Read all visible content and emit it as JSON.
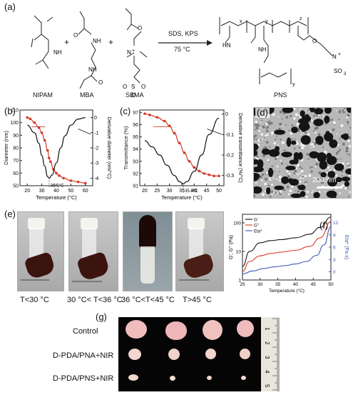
{
  "panel_a": {
    "label": "(a)",
    "monomers": [
      "NIPAM",
      "MBA",
      "SBMA"
    ],
    "product": "PNS",
    "conditions_top": "SDS, KPS",
    "conditions_bottom": "75 °C",
    "plus": "+"
  },
  "panel_b": {
    "label": "(b)",
    "chart_data": {
      "type": "line",
      "xlabel": "Temperature (°C)",
      "ylabel": "Diameter (nm)",
      "y2label": "Derivative diameter (nm/°C)",
      "xlim": [
        15,
        65
      ],
      "xticks": [
        20,
        30,
        40,
        50,
        60
      ],
      "ylim": [
        50,
        110
      ],
      "yticks": [
        50,
        60,
        70,
        80,
        90,
        100,
        110
      ],
      "y2lim": [
        -4.5,
        0.5
      ],
      "y2ticks": [
        0,
        -1,
        -2,
        -3,
        -4
      ],
      "annotation": "35.1°C",
      "series": [
        {
          "x": [
            20,
            22,
            25,
            28,
            30,
            32,
            34,
            35,
            36,
            38,
            40,
            42,
            45,
            50,
            55,
            60
          ],
          "values": [
            104,
            103,
            100,
            96,
            92,
            86,
            78,
            72,
            69,
            63,
            60,
            58,
            56,
            54,
            53,
            52
          ]
        },
        {
          "x": [
            20,
            25,
            28,
            30,
            32,
            34,
            35.1,
            37,
            40,
            43,
            46,
            50,
            55,
            60
          ],
          "values": [
            -0.5,
            -1.0,
            -1.7,
            -2.5,
            -3.2,
            -3.9,
            -4.0,
            -3.8,
            -3.0,
            -2.0,
            -1.2,
            -0.5,
            -0.1,
            0
          ]
        }
      ]
    }
  },
  "panel_c": {
    "label": "(c)",
    "chart_data": {
      "type": "line",
      "xlabel": "Temperature (°C)",
      "ylabel": "Transmittance (%)",
      "y2label": "Derivative transmittance (%/°C)",
      "xlim": [
        18,
        52
      ],
      "xticks": [
        20,
        25,
        30,
        35,
        40,
        45,
        50
      ],
      "ylim": [
        91,
        97.2
      ],
      "yticks": [
        91,
        92,
        93,
        94,
        95,
        96,
        97
      ],
      "y2lim": [
        -0.35,
        0.02
      ],
      "y2ticks": [
        0,
        -0.1,
        -0.2,
        -0.3
      ],
      "annotation": "35.6°C",
      "series": [
        {
          "x": [
            20,
            22,
            25,
            28,
            30,
            32,
            34,
            36,
            38,
            40,
            42,
            44,
            46,
            48,
            50
          ],
          "values": [
            96.9,
            96.8,
            96.6,
            96.3,
            95.9,
            95.3,
            94.5,
            93.7,
            93.0,
            92.5,
            92.2,
            92.0,
            91.9,
            91.8,
            91.8
          ]
        },
        {
          "x": [
            20,
            23,
            26,
            29,
            32,
            34,
            35.6,
            37,
            40,
            43,
            46,
            50
          ],
          "values": [
            -0.13,
            -0.16,
            -0.2,
            -0.25,
            -0.3,
            -0.33,
            -0.34,
            -0.33,
            -0.28,
            -0.2,
            -0.1,
            -0.02
          ]
        }
      ]
    }
  },
  "panel_d": {
    "label": "(d)",
    "scale_bar": "200 nm"
  },
  "panel_e": {
    "label": "(e)",
    "captions": [
      "T<30 °C",
      "30 °C< T<36 °C",
      "36 °C<T<45 °C",
      "T>45 °C"
    ]
  },
  "panel_f": {
    "label": "(f)",
    "chart_data": {
      "type": "line",
      "xlabel": "Temperature (°C)",
      "ylabel": "G', G'' (Pa)",
      "y2label": "Eta* (Pa·s)",
      "xlim": [
        25,
        50
      ],
      "xticks": [
        25,
        30,
        35,
        40,
        45,
        50
      ],
      "ylog": true,
      "ylim": [
        1,
        200
      ],
      "yticks": [
        1,
        10,
        100
      ],
      "y2lim": [
        -2,
        14
      ],
      "y2ticks": [
        0,
        3,
        6,
        9,
        12
      ],
      "legend": "top-left",
      "series": [
        {
          "name": "G'",
          "x": [
            25,
            27,
            30,
            33,
            36,
            40,
            44,
            47,
            50
          ],
          "values": [
            3,
            10,
            20,
            24,
            26,
            30,
            40,
            70,
            160
          ],
          "color": "#111111"
        },
        {
          "name": "G''",
          "x": [
            25,
            27,
            30,
            33,
            36,
            40,
            44,
            47,
            50
          ],
          "values": [
            2,
            4.5,
            7,
            8.5,
            9.5,
            11,
            15,
            30,
            110
          ],
          "color": "#d93a2b"
        },
        {
          "name": "Eta*",
          "x": [
            25,
            28,
            31,
            34,
            37,
            40,
            43,
            46,
            48,
            50
          ],
          "values": [
            -0.5,
            0.2,
            0.8,
            1.2,
            1.5,
            1.9,
            2.5,
            4,
            6.5,
            11
          ],
          "color": "#3a57b8"
        }
      ]
    }
  },
  "panel_g": {
    "label": "(g)",
    "rows": [
      "Control",
      "D-PDA/PNA+NIR",
      "D-PDA/PNS+NIR"
    ],
    "ruler_numbers": [
      "1",
      "2",
      "3",
      "4",
      "5"
    ]
  }
}
